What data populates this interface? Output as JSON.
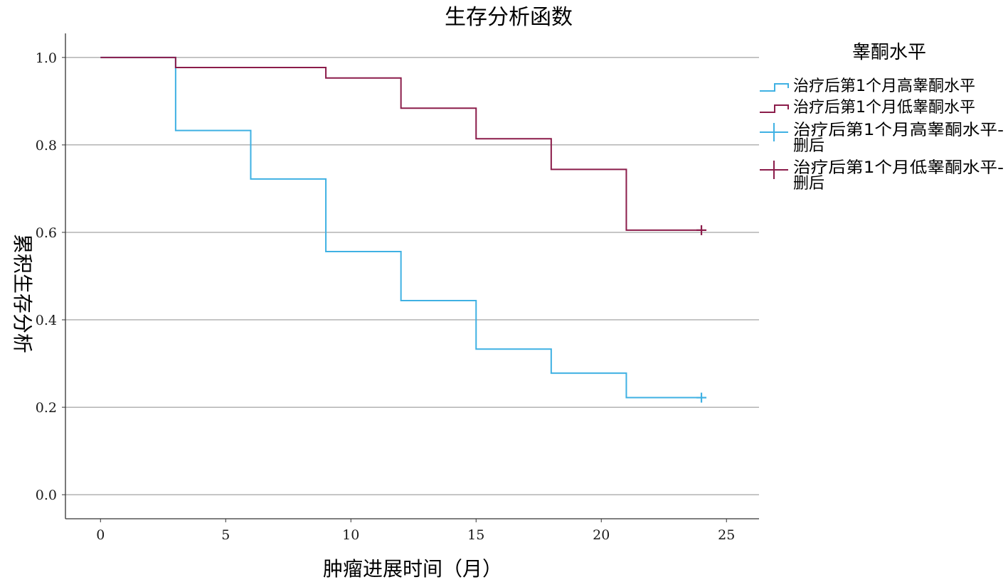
{
  "chart_data": {
    "type": "line",
    "title": "生存分析函数",
    "xlabel": "肿瘤进展时间（月）",
    "ylabel": "累积生存分析",
    "xlim": [
      -1.4,
      26.3
    ],
    "ylim": [
      -0.055,
      1.055
    ],
    "xticks": [
      0,
      5,
      10,
      15,
      20,
      25
    ],
    "xtick_labels": [
      "0",
      "5",
      "10",
      "15",
      "20",
      "25"
    ],
    "yticks": [
      0,
      0.2,
      0.4,
      0.6,
      0.8,
      1.0
    ],
    "ytick_labels": [
      "0.0",
      "0.2",
      "0.4",
      "0.6",
      "0.8",
      "1.0"
    ],
    "grid": "horizontal",
    "legend_position": "right",
    "legend_title": "睾酮水平",
    "series": [
      {
        "name": "治疗后第1个月高睾酮水平",
        "censored_label": "治疗后第1个月高睾酮水平-删后",
        "color": "#3fb1e3",
        "step_x": [
          0,
          3,
          6,
          9,
          12,
          15,
          18,
          21,
          24
        ],
        "step_y": [
          1.0,
          0.833,
          0.722,
          0.556,
          0.444,
          0.333,
          0.278,
          0.222,
          0.222
        ],
        "censored": [
          {
            "x": 24,
            "y": 0.222
          }
        ]
      },
      {
        "name": "治疗后第1个月低睾酮水平",
        "censored_label": "治疗后第1个月低睾酮水平-删后",
        "color": "#8b1c4a",
        "step_x": [
          0,
          3,
          9,
          12,
          15,
          18,
          21,
          24
        ],
        "step_y": [
          1.0,
          0.977,
          0.953,
          0.884,
          0.814,
          0.744,
          0.605,
          0.605
        ],
        "censored": [
          {
            "x": 24,
            "y": 0.605
          }
        ]
      }
    ]
  }
}
